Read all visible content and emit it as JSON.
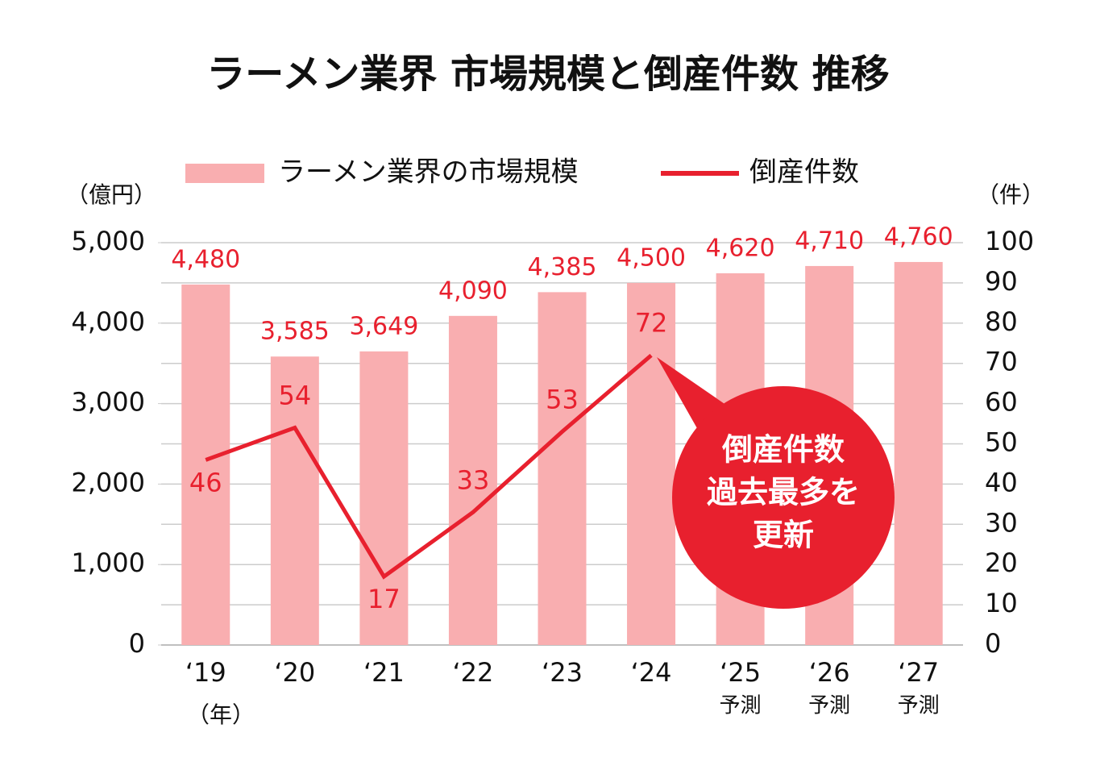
{
  "chart_data": {
    "type": "bar_line",
    "title": "ラーメン業界 市場規模と倒産件数 推移",
    "y_label": "（億円）",
    "y2_label": "（件）",
    "x_label": "（年）",
    "categories": [
      "‘19",
      "‘20",
      "‘21",
      "‘22",
      "‘23",
      "‘24",
      "‘25",
      "‘26",
      "‘27"
    ],
    "category_notes": [
      null,
      null,
      null,
      null,
      null,
      null,
      "予測",
      "予測",
      "予測"
    ],
    "series": [
      {
        "name": "ラーメン業界の市場規模",
        "color": "#f9aeb0",
        "type": "bar",
        "values": [
          4480,
          3585,
          3649,
          4090,
          4385,
          4500,
          4620,
          4710,
          4760
        ],
        "value_labels": [
          "4,480",
          "3,585",
          "3,649",
          "4,090",
          "4,385",
          "4,500",
          "4,620",
          "4,710",
          "4,760"
        ]
      },
      {
        "name": "倒産件数",
        "color": "#e8202e",
        "type": "line",
        "axis": "y2",
        "values": [
          46,
          54,
          17,
          33,
          53,
          72,
          null,
          null,
          null
        ]
      }
    ],
    "ylim": [
      0,
      5000
    ],
    "yticks": [
      0,
      {
        "value": 1000,
        "label": "1,000"
      },
      {
        "value": 2000,
        "label": "2,000"
      },
      {
        "value": 3000,
        "label": "3,000"
      },
      {
        "value": 4000,
        "label": "4,000"
      },
      {
        "value": 5000,
        "label": "5,000"
      }
    ],
    "y2lim": [
      0,
      100
    ],
    "y2ticks": [
      0,
      10,
      20,
      30,
      40,
      50,
      60,
      70,
      80,
      90,
      100
    ],
    "grid": true,
    "annotation": {
      "lines": [
        "倒産件数",
        "過去最多を",
        "更新"
      ],
      "color": "#e8202e"
    }
  }
}
